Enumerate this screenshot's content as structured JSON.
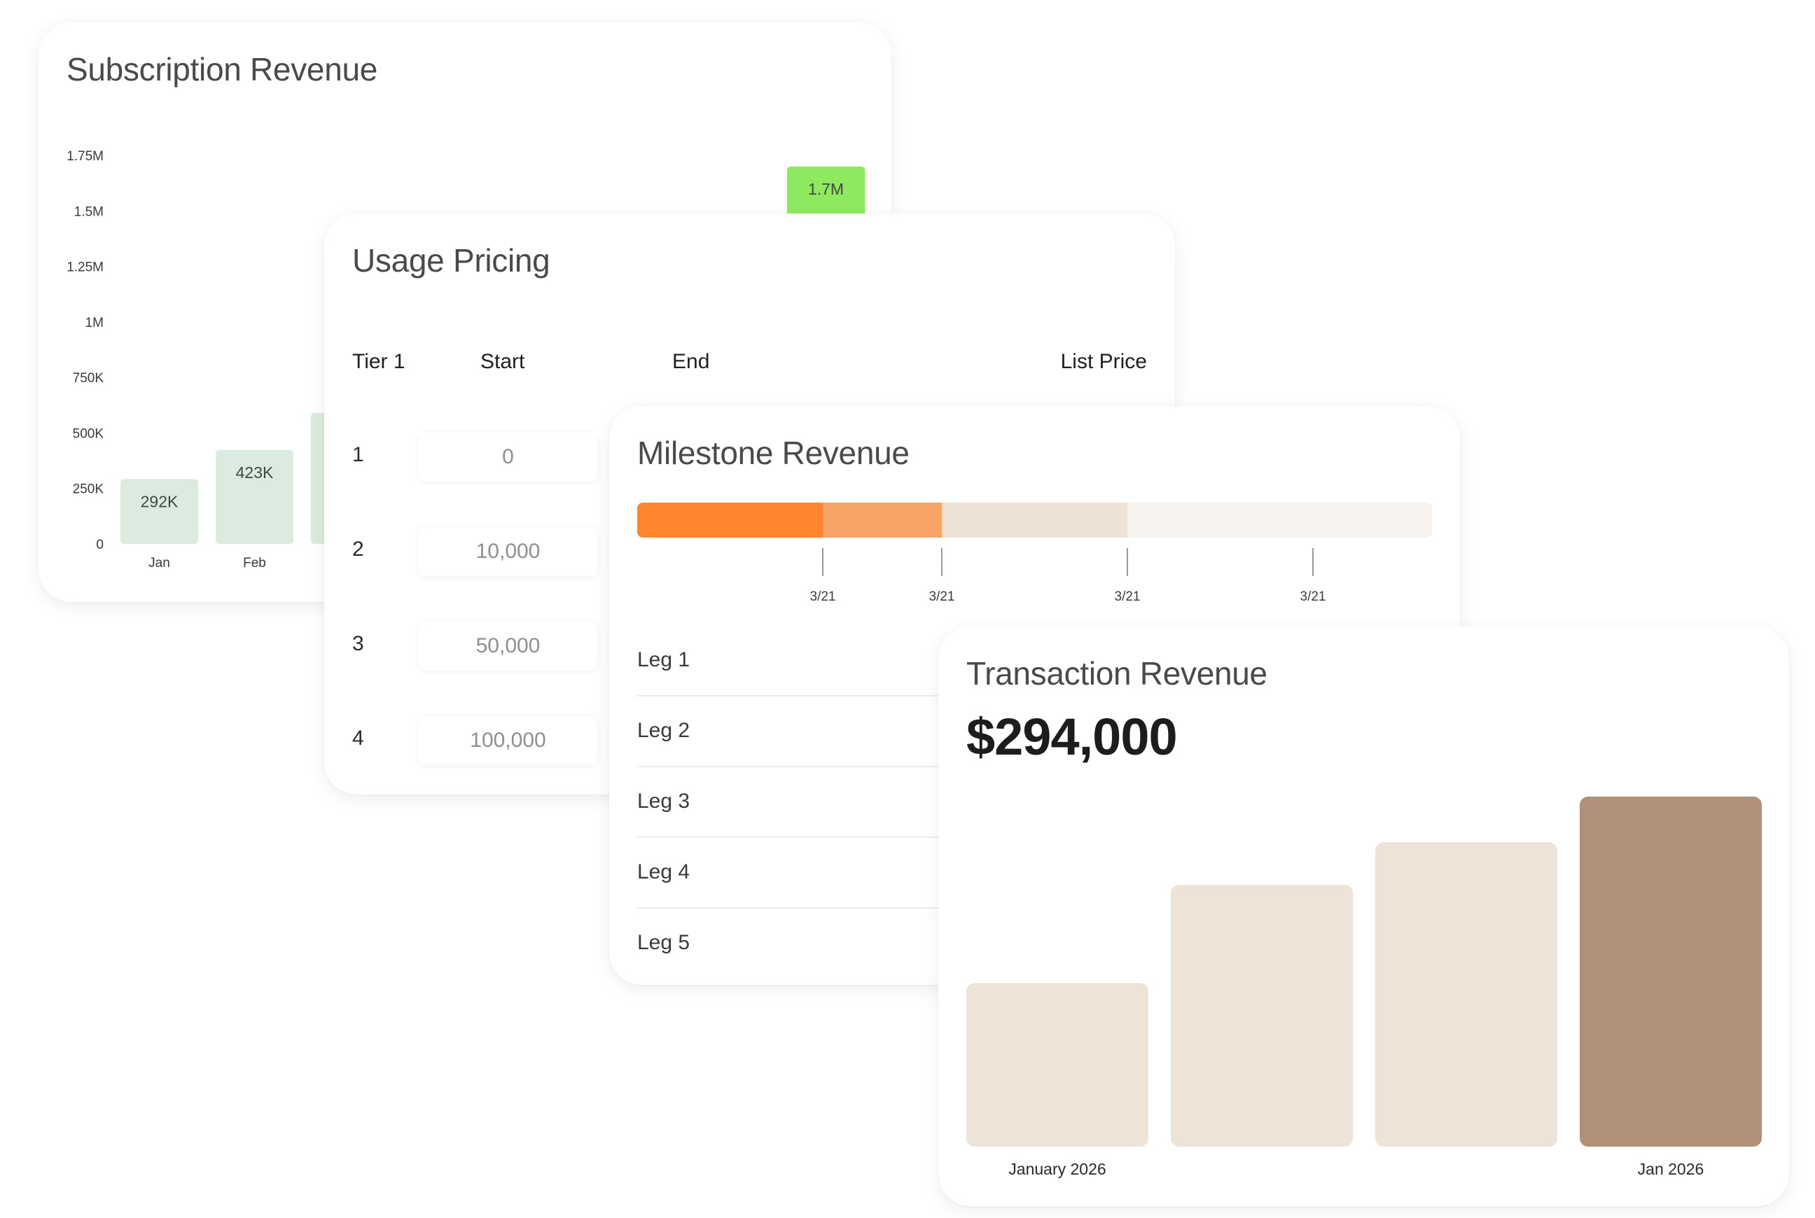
{
  "subscription": {
    "title": "Subscription Revenue"
  },
  "usage": {
    "title": "Usage Pricing",
    "headers": {
      "tier": "Tier 1",
      "start": "Start",
      "end": "End",
      "price": "List Price"
    },
    "rows": [
      {
        "tier": "1",
        "start": "0"
      },
      {
        "tier": "2",
        "start": "10,000"
      },
      {
        "tier": "3",
        "start": "50,000"
      },
      {
        "tier": "4",
        "start": "100,000"
      }
    ]
  },
  "milestone": {
    "title": "Milestone Revenue",
    "progress_colors": [
      "#ff8630",
      "#f7a267",
      "#eee2d6",
      "#f8f3ee",
      "#f8f3ee"
    ],
    "tick_labels": [
      "3/21",
      "3/21",
      "3/21",
      "3/21"
    ],
    "legs": [
      "Leg 1",
      "Leg 2",
      "Leg 3",
      "Leg 4",
      "Leg 5"
    ]
  },
  "transaction": {
    "title": "Transaction Revenue",
    "total": "$294,000"
  },
  "chart_data": [
    {
      "id": "subscription",
      "type": "bar",
      "categories": [
        "Jan",
        "Feb",
        "",
        "",
        "",
        "",
        "",
        ""
      ],
      "values": [
        292000,
        423000,
        590000,
        null,
        null,
        null,
        null,
        1700000
      ],
      "data_labels": [
        "292K",
        "423K",
        "",
        "",
        "",
        "",
        "",
        "1.7M"
      ],
      "y_ticks": [
        {
          "value": 0,
          "label": "0"
        },
        {
          "value": 250000,
          "label": "250K"
        },
        {
          "value": 500000,
          "label": "500K"
        },
        {
          "value": 750000,
          "label": "750K"
        },
        {
          "value": 1000000,
          "label": "1M"
        },
        {
          "value": 1250000,
          "label": "1.25M"
        },
        {
          "value": 1500000,
          "label": "1.5M"
        },
        {
          "value": 1750000,
          "label": "1.75M"
        }
      ],
      "ylim": [
        0,
        1750000
      ],
      "bar_color": "#dcebdf",
      "highlight_color": "#8ee95f",
      "highlight_index": 7,
      "grid": false
    },
    {
      "id": "transaction",
      "type": "bar",
      "categories": [
        "January 2026",
        "",
        "",
        "Jan 2026"
      ],
      "values": [
        1.0,
        1.6,
        1.86,
        2.14
      ],
      "ylim": [
        0,
        2.14
      ],
      "bar_color": "#ede3d7",
      "highlight_color": "#b09178",
      "highlight_index": 3,
      "grid": false
    }
  ]
}
